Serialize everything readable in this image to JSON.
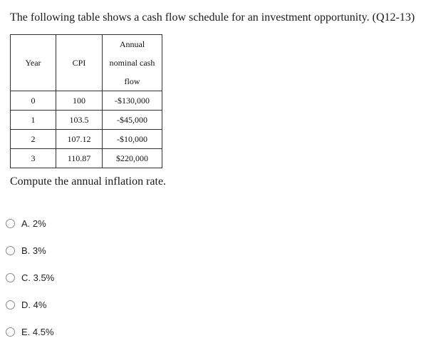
{
  "question": {
    "text": "The following table shows a cash flow schedule for an investment opportunity. (Q12-13)"
  },
  "table": {
    "headers": {
      "year": "Year",
      "cpi": "CPI",
      "cash_flow_line1": "Annual",
      "cash_flow_line2": "nominal cash",
      "cash_flow_line3": "flow"
    },
    "rows": [
      {
        "year": "0",
        "cpi": "100",
        "cash_flow": "-$130,000"
      },
      {
        "year": "1",
        "cpi": "103.5",
        "cash_flow": "-$45,000"
      },
      {
        "year": "2",
        "cpi": "107.12",
        "cash_flow": "-$10,000"
      },
      {
        "year": "3",
        "cpi": "110.87",
        "cash_flow": "$220,000"
      }
    ]
  },
  "prompt": {
    "text": "Compute the annual inflation rate."
  },
  "options": [
    {
      "label": "A. 2%"
    },
    {
      "label": "B. 3%"
    },
    {
      "label": "C. 3.5%"
    },
    {
      "label": "D. 4%"
    },
    {
      "label": "E. 4.5%"
    }
  ]
}
